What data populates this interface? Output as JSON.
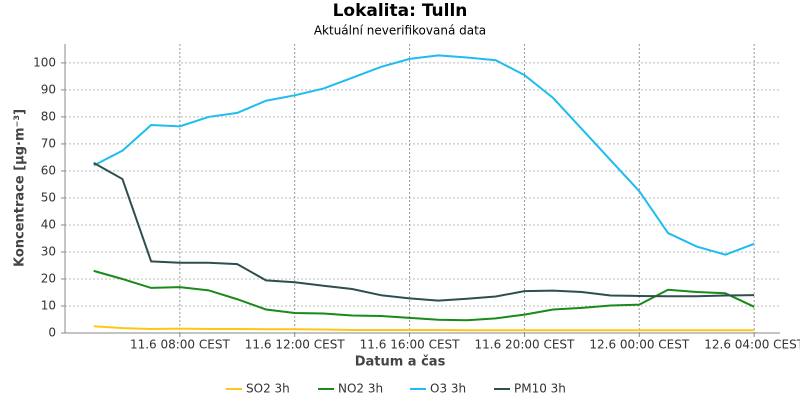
{
  "chart_data": {
    "type": "line",
    "title": "Lokalita: Tulln",
    "subtitle": "Aktuální neverifikovaná data",
    "x_label": "Datum a čas",
    "y_label": "Koncentrace [µg·m⁻³]",
    "x": [
      "11.6 05:00 CEST",
      "11.6 06:00 CEST",
      "11.6 07:00 CEST",
      "11.6 08:00 CEST",
      "11.6 09:00 CEST",
      "11.6 10:00 CEST",
      "11.6 11:00 CEST",
      "11.6 12:00 CEST",
      "11.6 13:00 CEST",
      "11.6 14:00 CEST",
      "11.6 15:00 CEST",
      "11.6 16:00 CEST",
      "11.6 17:00 CEST",
      "11.6 18:00 CEST",
      "11.6 19:00 CEST",
      "11.6 20:00 CEST",
      "11.6 21:00 CEST",
      "11.6 22:00 CEST",
      "11.6 23:00 CEST",
      "12.6 00:00 CEST",
      "12.6 01:00 CEST",
      "12.6 02:00 CEST",
      "12.6 03:00 CEST",
      "12.6 04:00 CEST"
    ],
    "xticks": [
      "11.6 08:00 CEST",
      "11.6 12:00 CEST",
      "11.6 16:00 CEST",
      "11.6 20:00 CEST",
      "12.6 00:00 CEST",
      "12.6 04:00 CEST"
    ],
    "ylim": [
      0,
      107
    ],
    "yticks": [
      0,
      10,
      20,
      30,
      40,
      50,
      60,
      70,
      80,
      90,
      100
    ],
    "grid": true,
    "legend": "bottom",
    "series": [
      {
        "name": "SO2 3h",
        "color": "#ffc61a",
        "values": [
          2.5,
          1.8,
          1.5,
          1.6,
          1.5,
          1.5,
          1.4,
          1.4,
          1.3,
          1.1,
          1.1,
          1.1,
          1.1,
          1.0,
          1.0,
          1.0,
          1.0,
          1.0,
          1.0,
          1.0,
          1.0,
          1.0,
          1.0,
          1.0
        ]
      },
      {
        "name": "NO2 3h",
        "color": "#1a8a1a",
        "values": [
          23,
          20,
          16.7,
          17,
          15.8,
          12.5,
          8.7,
          7.4,
          7.2,
          6.5,
          6.3,
          5.6,
          4.9,
          4.7,
          5.4,
          6.8,
          8.7,
          9.3,
          10.2,
          10.5,
          16,
          15.2,
          14.7,
          9.7
        ]
      },
      {
        "name": "O3 3h",
        "color": "#1ebcf0",
        "values": [
          62,
          67.5,
          77,
          76.5,
          80,
          81.5,
          86,
          88,
          90.5,
          94.5,
          98.5,
          101.5,
          102.8,
          102,
          101,
          95.5,
          87,
          75.5,
          64,
          52.5,
          37,
          32,
          29,
          33
        ]
      },
      {
        "name": "PM10 3h",
        "color": "#2f4f4f",
        "values": [
          63,
          57,
          26.5,
          26,
          26,
          25.5,
          19.5,
          18.8,
          17.5,
          16.3,
          14,
          12.8,
          12,
          12.7,
          13.5,
          15.5,
          15.7,
          15.2,
          13.9,
          13.7,
          13.6,
          13.6,
          13.9,
          14
        ]
      }
    ]
  }
}
